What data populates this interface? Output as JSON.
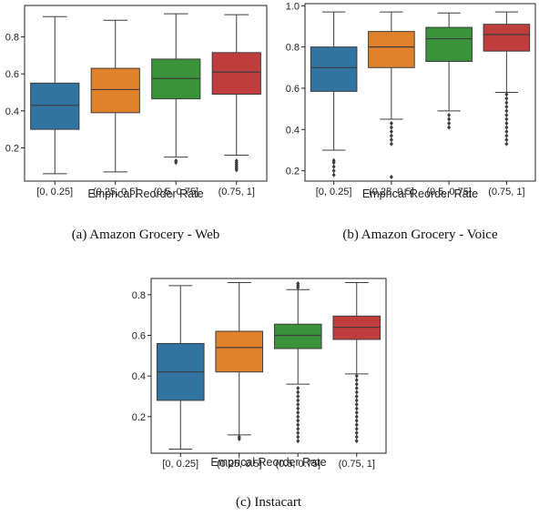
{
  "chart_data": [
    {
      "type": "box",
      "caption": "(a)  Amazon Grocery - Web",
      "xlabel": "Emprical Reorder Rate",
      "ylabel": "",
      "categories": [
        "[0, 0.25]",
        "(0.25, 0.5]",
        "(0.5, 0.75]",
        "(0.75, 1]"
      ],
      "colors": [
        "#3274a1",
        "#e1812c",
        "#3a923a",
        "#c03d3e"
      ],
      "ylim": [
        0.02,
        0.97
      ],
      "yticks": [
        0.2,
        0.4,
        0.6,
        0.8
      ],
      "ytick_labels": [
        "0.2",
        "0.4",
        "0.6",
        "0.8"
      ],
      "grid": false,
      "boxes": [
        {
          "whisker_low": 0.06,
          "q1": 0.3,
          "median": 0.43,
          "q3": 0.55,
          "whisker_high": 0.91,
          "outliers": []
        },
        {
          "whisker_low": 0.07,
          "q1": 0.39,
          "median": 0.515,
          "q3": 0.63,
          "whisker_high": 0.89,
          "outliers": []
        },
        {
          "whisker_low": 0.15,
          "q1": 0.465,
          "median": 0.575,
          "q3": 0.68,
          "whisker_high": 0.925,
          "outliers": [
            0.12,
            0.13
          ]
        },
        {
          "whisker_low": 0.16,
          "q1": 0.49,
          "median": 0.61,
          "q3": 0.715,
          "whisker_high": 0.92,
          "outliers": [
            0.08,
            0.09,
            0.1,
            0.11,
            0.12,
            0.13
          ]
        }
      ]
    },
    {
      "type": "box",
      "caption": "(b)  Amazon Grocery - Voice",
      "xlabel": "Emprical Reorder Rate",
      "ylabel": "",
      "categories": [
        "[0, 0.25]",
        "(0.25, 0.5]",
        "(0.5, 0.75]",
        "(0.75, 1]"
      ],
      "colors": [
        "#3274a1",
        "#e1812c",
        "#3a923a",
        "#c03d3e"
      ],
      "ylim": [
        0.15,
        1.01
      ],
      "yticks": [
        0.2,
        0.4,
        0.6,
        0.8,
        1.0
      ],
      "ytick_labels": [
        "0.2",
        "0.4",
        "0.6",
        "0.8",
        "1.0"
      ],
      "grid": false,
      "boxes": [
        {
          "whisker_low": 0.3,
          "q1": 0.585,
          "median": 0.7,
          "q3": 0.8,
          "whisker_high": 0.97,
          "outliers": [
            0.18,
            0.2,
            0.22,
            0.24,
            0.25
          ]
        },
        {
          "whisker_low": 0.45,
          "q1": 0.7,
          "median": 0.8,
          "q3": 0.875,
          "whisker_high": 0.97,
          "outliers": [
            0.17,
            0.33,
            0.35,
            0.37,
            0.39,
            0.41,
            0.43
          ]
        },
        {
          "whisker_low": 0.49,
          "q1": 0.73,
          "median": 0.84,
          "q3": 0.895,
          "whisker_high": 0.965,
          "outliers": [
            0.41,
            0.43,
            0.45,
            0.47
          ]
        },
        {
          "whisker_low": 0.58,
          "q1": 0.78,
          "median": 0.86,
          "q3": 0.91,
          "whisker_high": 0.97,
          "outliers": [
            0.33,
            0.35,
            0.37,
            0.39,
            0.41,
            0.43,
            0.45,
            0.47,
            0.49,
            0.51,
            0.53,
            0.55,
            0.57
          ]
        }
      ]
    },
    {
      "type": "box",
      "caption": "(c)  Instacart",
      "xlabel": "Emprical Reorder Rate",
      "ylabel": "",
      "categories": [
        "[0, 0.25]",
        "(0.25, 0.5]",
        "(0.5, 0.75]",
        "(0.75, 1]"
      ],
      "colors": [
        "#3274a1",
        "#e1812c",
        "#3a923a",
        "#c03d3e"
      ],
      "ylim": [
        0.02,
        0.88
      ],
      "yticks": [
        0.2,
        0.4,
        0.6,
        0.8
      ],
      "ytick_labels": [
        "0.2",
        "0.4",
        "0.6",
        "0.8"
      ],
      "grid": false,
      "boxes": [
        {
          "whisker_low": 0.04,
          "q1": 0.28,
          "median": 0.42,
          "q3": 0.56,
          "whisker_high": 0.845,
          "outliers": []
        },
        {
          "whisker_low": 0.11,
          "q1": 0.42,
          "median": 0.54,
          "q3": 0.62,
          "whisker_high": 0.86,
          "outliers": [
            0.09,
            0.1
          ]
        },
        {
          "whisker_low": 0.36,
          "q1": 0.535,
          "median": 0.6,
          "q3": 0.655,
          "whisker_high": 0.825,
          "outliers": [
            0.08,
            0.1,
            0.12,
            0.14,
            0.16,
            0.18,
            0.2,
            0.22,
            0.24,
            0.26,
            0.28,
            0.3,
            0.32,
            0.34,
            0.835,
            0.845,
            0.855
          ]
        },
        {
          "whisker_low": 0.41,
          "q1": 0.58,
          "median": 0.64,
          "q3": 0.695,
          "whisker_high": 0.86,
          "outliers": [
            0.08,
            0.1,
            0.12,
            0.14,
            0.16,
            0.18,
            0.2,
            0.22,
            0.24,
            0.26,
            0.28,
            0.3,
            0.32,
            0.34,
            0.36,
            0.38,
            0.4
          ]
        }
      ]
    }
  ]
}
